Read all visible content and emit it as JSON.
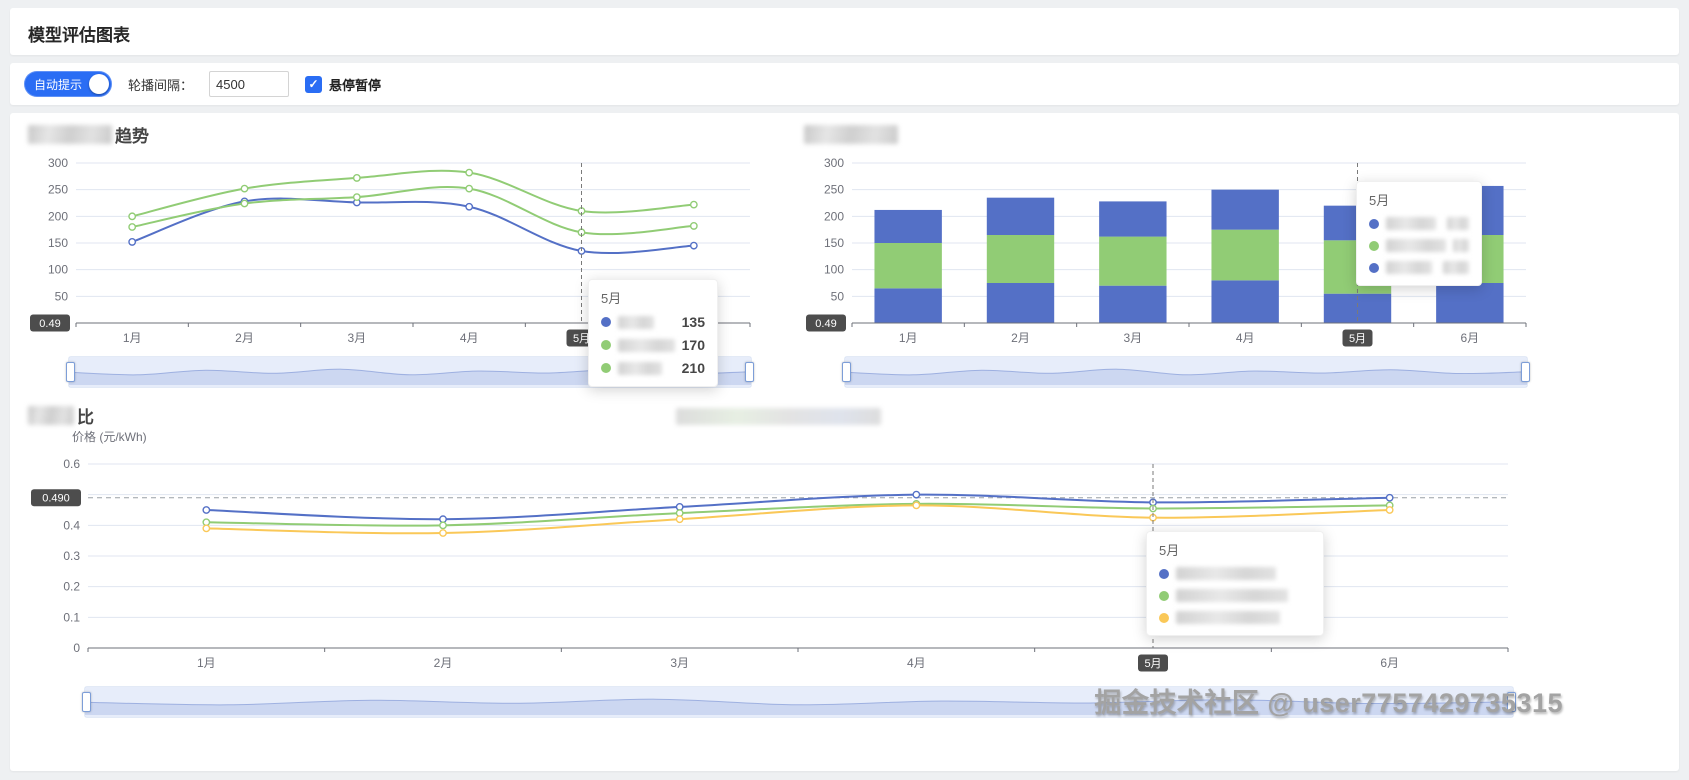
{
  "page": {
    "title": "模型评估图表",
    "watermark": "掘金技术社区 @ user7757429735315"
  },
  "toolbar": {
    "toggle_label": "自动提示",
    "interval_label": "轮播间隔：",
    "interval_value": "4500",
    "pause_label": "悬停暂停",
    "check_glyph": "✓"
  },
  "charts": {
    "trend": {
      "title_visible": "趋势"
    },
    "stack": {
      "title_visible": ""
    },
    "price": {
      "title_visible": "比",
      "ylabel": "价格 (元/kWh)"
    }
  },
  "chart_data": [
    {
      "id": "trend",
      "type": "line",
      "title": "趋势 (前缀被遮挡)",
      "categories": [
        "1月",
        "2月",
        "3月",
        "4月",
        "5月",
        "6月"
      ],
      "series": [
        {
          "name": "series-blue",
          "color": "#5470c6",
          "values": [
            152,
            228,
            226,
            218,
            135,
            145
          ]
        },
        {
          "name": "series-green-lower",
          "color": "#91cc75",
          "values": [
            180,
            224,
            236,
            252,
            170,
            182
          ]
        },
        {
          "name": "series-green-upper",
          "color": "#91cc75",
          "values": [
            200,
            252,
            272,
            282,
            210,
            222
          ]
        }
      ],
      "ylim": [
        0,
        300
      ],
      "ygrid": [
        50,
        100,
        150,
        200,
        250,
        300
      ],
      "ylabels": [
        50,
        100,
        150,
        200,
        250,
        300
      ],
      "grid": true,
      "pointer": "5月",
      "left_badge": "0.49",
      "tooltip": {
        "title": "5月",
        "rows": [
          {
            "color": "#5470c6",
            "label_redacted": true,
            "value": "135"
          },
          {
            "color": "#91cc75",
            "label_redacted": true,
            "value": "170"
          },
          {
            "color": "#91cc75",
            "label_redacted": true,
            "value": "210"
          }
        ]
      }
    },
    {
      "id": "stack",
      "type": "bar",
      "title": "(标题被遮挡)",
      "categories": [
        "1月",
        "2月",
        "3月",
        "4月",
        "5月",
        "6月"
      ],
      "series": [
        {
          "name": "stack-bottom-blue",
          "color": "#5470c6",
          "values": [
            65,
            75,
            70,
            80,
            55,
            75
          ]
        },
        {
          "name": "stack-middle-green",
          "color": "#91cc75",
          "values": [
            85,
            90,
            92,
            95,
            100,
            90
          ]
        },
        {
          "name": "stack-top-blue",
          "color": "#5470c6",
          "values": [
            62,
            70,
            66,
            75,
            65,
            92
          ]
        }
      ],
      "ylim": [
        0,
        300
      ],
      "ygrid": [
        50,
        100,
        150,
        200,
        250,
        300
      ],
      "ylabels": [
        50,
        100,
        150,
        200,
        250,
        300
      ],
      "grid": true,
      "pointer": "5月",
      "left_badge": "0.49",
      "tooltip": {
        "title": "5月",
        "rows": [
          {
            "color": "#5470c6",
            "label_redacted": true,
            "value_redacted": true
          },
          {
            "color": "#91cc75",
            "label_redacted": true,
            "value_redacted": true
          },
          {
            "color": "#5470c6",
            "label_redacted": true,
            "value_redacted": true
          }
        ]
      }
    },
    {
      "id": "price",
      "type": "line",
      "title": "比 (前缀被遮挡)",
      "ylabel": "价格 (元/kWh)",
      "categories": [
        "1月",
        "2月",
        "3月",
        "4月",
        "5月",
        "6月"
      ],
      "series": [
        {
          "name": "price-blue",
          "color": "#5470c6",
          "values": [
            0.45,
            0.42,
            0.46,
            0.5,
            0.475,
            0.49
          ]
        },
        {
          "name": "price-green",
          "color": "#91cc75",
          "values": [
            0.41,
            0.4,
            0.44,
            0.47,
            0.455,
            0.465
          ]
        },
        {
          "name": "price-yellow",
          "color": "#fac858",
          "values": [
            0.39,
            0.375,
            0.42,
            0.465,
            0.425,
            0.45
          ]
        }
      ],
      "ylim": [
        0,
        0.6
      ],
      "ygrid": [
        0.1,
        0.2,
        0.3,
        0.4,
        0.5,
        0.6
      ],
      "ylabels": [
        0,
        0.1,
        0.2,
        0.3,
        0.4,
        0.6
      ],
      "grid": true,
      "pointer": "5月",
      "markline": {
        "value": 0.49,
        "label": "0.490"
      },
      "tooltip": {
        "title": "5月",
        "rows": [
          {
            "color": "#5470c6",
            "label_redacted": true
          },
          {
            "color": "#91cc75",
            "label_redacted": true
          },
          {
            "color": "#fac858",
            "label_redacted": true
          }
        ]
      }
    }
  ]
}
